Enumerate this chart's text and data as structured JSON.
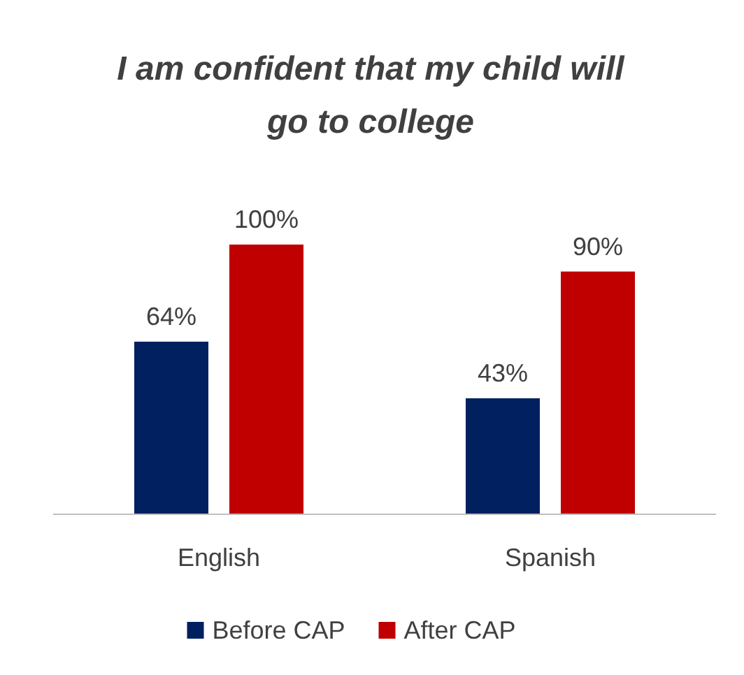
{
  "chart_data": {
    "type": "bar",
    "title": "I am confident that my child will go to college",
    "categories": [
      "English",
      "Spanish"
    ],
    "series": [
      {
        "name": "Before CAP",
        "color": "#002060",
        "values": [
          64,
          43
        ],
        "value_labels": [
          "64%",
          "43%"
        ]
      },
      {
        "name": "After CAP",
        "color": "#c00000",
        "values": [
          100,
          90
        ],
        "value_labels": [
          "100%",
          "90%"
        ]
      }
    ],
    "legend": "bottom"
  }
}
